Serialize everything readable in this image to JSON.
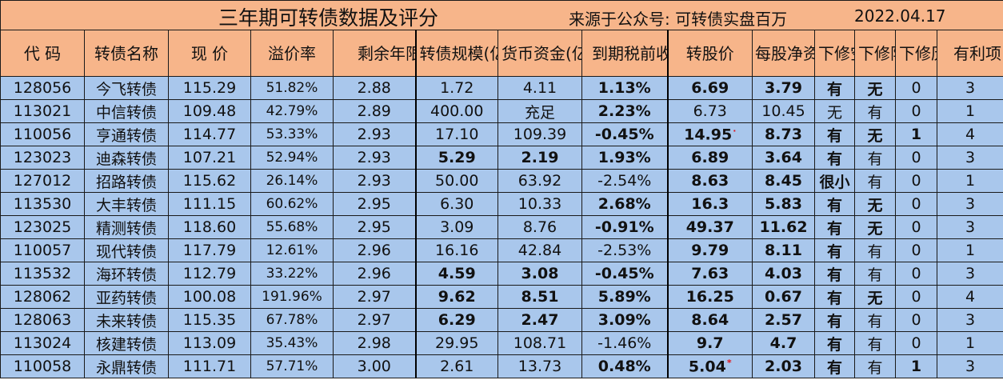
{
  "title": {
    "main": "三年期可转债数据及评分",
    "source": "来源于公众号:  可转债实盘百万",
    "date": "2022.04.17"
  },
  "headers": {
    "code": "代 码",
    "name": "转债名称",
    "price": "现 价",
    "premium": "溢价率",
    "remaining": "剩余年限",
    "scale": "转债规模(亿元)",
    "cash": "货币资金(亿元)",
    "ytm": "到期税前收益",
    "conv_price": "转股价",
    "nav": "每股净资产",
    "down_space": "下修空间",
    "down_limit": "下修限制",
    "down_hist": "下修历史",
    "favor": "有利项"
  },
  "rows": [
    {
      "code": "128056",
      "name": "今飞转债",
      "price": "115.29",
      "premium": "51.82%",
      "remaining": "2.88",
      "scale": "1.72",
      "cash": "4.11",
      "ytm": "1.13%",
      "conv_price": "6.69",
      "nav": "3.79",
      "down_space": "有",
      "down_limit": "无",
      "down_hist": "0",
      "favor": "3"
    },
    {
      "code": "113021",
      "name": "中信转债",
      "price": "109.48",
      "premium": "42.79%",
      "remaining": "2.89",
      "scale": "400.00",
      "cash": "充足",
      "ytm": "2.23%",
      "conv_price": "6.73",
      "nav": "10.45",
      "down_space": "无",
      "down_limit": "有",
      "down_hist": "0",
      "favor": "1"
    },
    {
      "code": "110056",
      "name": "亨通转债",
      "price": "114.77",
      "premium": "53.33%",
      "remaining": "2.93",
      "scale": "17.10",
      "cash": "109.39",
      "ytm": "-0.45%",
      "conv_price": "14.95",
      "nav": "8.73",
      "down_space": "有",
      "down_limit": "无",
      "down_hist": "1",
      "favor": "4"
    },
    {
      "code": "123023",
      "name": "迪森转债",
      "price": "107.21",
      "premium": "52.94%",
      "remaining": "2.93",
      "scale": "5.29",
      "cash": "2.19",
      "ytm": "1.93%",
      "conv_price": "6.89",
      "nav": "3.64",
      "down_space": "有",
      "down_limit": "有",
      "down_hist": "0",
      "favor": "3"
    },
    {
      "code": "127012",
      "name": "招路转债",
      "price": "115.62",
      "premium": "26.14%",
      "remaining": "2.93",
      "scale": "50.00",
      "cash": "63.92",
      "ytm": "-2.54%",
      "conv_price": "8.63",
      "nav": "8.45",
      "down_space": "很小",
      "down_limit": "有",
      "down_hist": "0",
      "favor": "1"
    },
    {
      "code": "113530",
      "name": "大丰转债",
      "price": "111.15",
      "premium": "60.62%",
      "remaining": "2.95",
      "scale": "6.30",
      "cash": "10.33",
      "ytm": "2.68%",
      "conv_price": "16.3",
      "nav": "5.83",
      "down_space": "有",
      "down_limit": "无",
      "down_hist": "0",
      "favor": "3"
    },
    {
      "code": "123025",
      "name": "精测转债",
      "price": "118.60",
      "premium": "55.68%",
      "remaining": "2.95",
      "scale": "3.09",
      "cash": "8.76",
      "ytm": "-0.91%",
      "conv_price": "49.37",
      "nav": "11.62",
      "down_space": "有",
      "down_limit": "无",
      "down_hist": "0",
      "favor": "3"
    },
    {
      "code": "110057",
      "name": "现代转债",
      "price": "117.79",
      "premium": "12.61%",
      "remaining": "2.96",
      "scale": "16.16",
      "cash": "42.84",
      "ytm": "-2.53%",
      "conv_price": "9.79",
      "nav": "8.11",
      "down_space": "有",
      "down_limit": "有",
      "down_hist": "0",
      "favor": "1"
    },
    {
      "code": "113532",
      "name": "海环转债",
      "price": "112.79",
      "premium": "33.22%",
      "remaining": "2.96",
      "scale": "4.59",
      "cash": "3.08",
      "ytm": "-0.45%",
      "conv_price": "7.63",
      "nav": "4.03",
      "down_space": "有",
      "down_limit": "有",
      "down_hist": "0",
      "favor": "3"
    },
    {
      "code": "128062",
      "name": "亚药转债",
      "price": "100.08",
      "premium": "191.96%",
      "remaining": "2.97",
      "scale": "9.62",
      "cash": "8.51",
      "ytm": "5.89%",
      "conv_price": "16.25",
      "nav": "0.67",
      "down_space": "有",
      "down_limit": "无",
      "down_hist": "0",
      "favor": "4"
    },
    {
      "code": "128063",
      "name": "未来转债",
      "price": "115.35",
      "premium": "67.78%",
      "remaining": "2.97",
      "scale": "6.29",
      "cash": "2.47",
      "ytm": "3.09%",
      "conv_price": "8.64",
      "nav": "2.57",
      "down_space": "有",
      "down_limit": "有",
      "down_hist": "0",
      "favor": "3"
    },
    {
      "code": "113024",
      "name": "核建转债",
      "price": "113.09",
      "premium": "35.43%",
      "remaining": "2.98",
      "scale": "29.95",
      "cash": "108.71",
      "ytm": "-1.46%",
      "conv_price": "9.7",
      "nav": "4.7",
      "down_space": "有",
      "down_limit": "有",
      "down_hist": "0",
      "favor": "1"
    },
    {
      "code": "110058",
      "name": "永鼎转债",
      "price": "111.71",
      "premium": "57.71%",
      "remaining": "3.00",
      "scale": "2.61",
      "cash": "13.73",
      "ytm": "0.48%",
      "conv_price": "5.04",
      "nav": "2.03",
      "down_space": "有",
      "down_limit": "有",
      "down_hist": "1",
      "favor": "3"
    }
  ],
  "styles": {
    "name_red": [
      false,
      false,
      false,
      false,
      false,
      false,
      true,
      false,
      false,
      false,
      false,
      false,
      true
    ],
    "favor_red": [
      false,
      false,
      true,
      false,
      false,
      false,
      false,
      false,
      false,
      true,
      false,
      false,
      false
    ],
    "star_marks": {
      "2": "·",
      "12": "*"
    },
    "bold_scale_cash": [
      false,
      false,
      false,
      true,
      false,
      false,
      false,
      false,
      true,
      true,
      true,
      false,
      false
    ],
    "bold_ytm": [
      true,
      true,
      true,
      true,
      false,
      true,
      true,
      false,
      true,
      true,
      true,
      false,
      true
    ],
    "bold_conv": [
      true,
      false,
      true,
      true,
      true,
      true,
      true,
      true,
      true,
      true,
      true,
      true,
      true
    ],
    "bold_nav": [
      true,
      false,
      true,
      true,
      true,
      true,
      true,
      true,
      true,
      true,
      true,
      true,
      true
    ],
    "bold_space": [
      true,
      false,
      true,
      true,
      true,
      true,
      true,
      true,
      true,
      true,
      true,
      true,
      true
    ],
    "bold_limit": [
      true,
      false,
      true,
      false,
      false,
      true,
      true,
      false,
      false,
      true,
      false,
      false,
      false
    ],
    "bold_hist": [
      false,
      false,
      true,
      false,
      false,
      false,
      false,
      false,
      false,
      false,
      false,
      false,
      true
    ]
  },
  "colors": {
    "header_bg": "#f7b58a",
    "row_bg": "#a9c7ec",
    "highlight_red": "#e0141e"
  }
}
